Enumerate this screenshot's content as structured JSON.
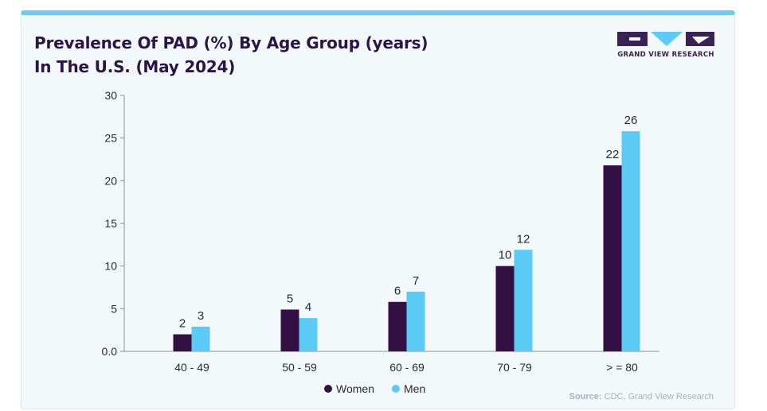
{
  "header": {
    "title_line1": "Prevalence Of PAD (%) By Age Group (years)",
    "title_line2": "In The U.S. (May 2024)",
    "logo_text": "GRAND VIEW RESEARCH"
  },
  "footer": {
    "source_label": "Source:",
    "source_text": " CDC, Grand View Research"
  },
  "colors": {
    "women": "#330f43",
    "men": "#5bcbf5",
    "axis": "#8a8f95",
    "text": "#2a2a2a"
  },
  "icons": {
    "logo": "grand-view-research-logo"
  },
  "chart_data": {
    "type": "bar",
    "title": "Prevalence Of PAD (%) By Age Group (years) In The U.S. (May 2024)",
    "categories": [
      "40 - 49",
      "50 - 59",
      "60 - 69",
      "70 - 79",
      "> = 80"
    ],
    "series": [
      {
        "name": "Women",
        "values": [
          2,
          5,
          6,
          10,
          22
        ],
        "plotted": [
          2.0,
          4.9,
          5.8,
          10.0,
          21.8
        ]
      },
      {
        "name": "Men",
        "values": [
          3,
          4,
          7,
          12,
          26
        ],
        "plotted": [
          2.9,
          3.9,
          7.0,
          11.9,
          25.8
        ]
      }
    ],
    "yticks": [
      "0.0",
      "5",
      "10",
      "15",
      "20",
      "25",
      "30"
    ],
    "ylim": [
      0,
      30
    ],
    "grid": false,
    "legend_position": "bottom-center",
    "xlabel": "",
    "ylabel": ""
  }
}
